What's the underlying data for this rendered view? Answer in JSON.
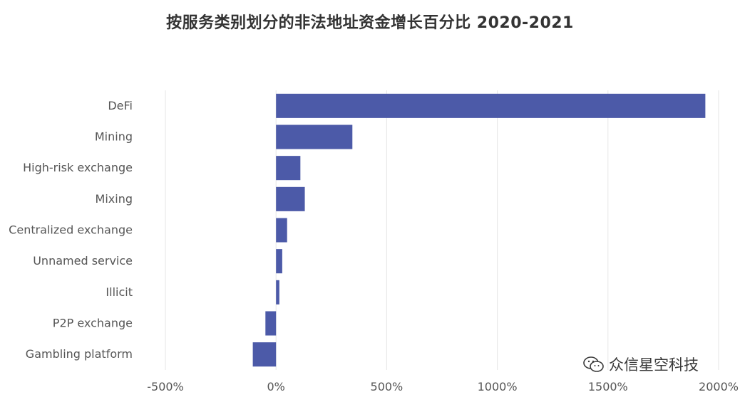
{
  "chart_data": {
    "type": "bar",
    "orientation": "horizontal",
    "title": "按服务类别划分的非法地址资金增长百分比 2020-2021",
    "xlabel": "",
    "ylabel": "",
    "categories": [
      "DeFi",
      "Mining",
      "High-risk exchange",
      "Mixing",
      "Centralized exchange",
      "Unnamed service",
      "Illicit",
      "P2P exchange",
      "Gambling platform"
    ],
    "values": [
      1940,
      345,
      110,
      130,
      50,
      28,
      15,
      -48,
      -105
    ],
    "xlim": [
      -500,
      2000
    ],
    "xticks": [
      -500,
      0,
      500,
      1000,
      1500,
      2000
    ],
    "xtick_labels": [
      "-500%",
      "0%",
      "500%",
      "1000%",
      "1500%",
      "2000%"
    ],
    "grid": true,
    "bar_color": "#4c5aa8",
    "legend": "none"
  },
  "watermark": {
    "text": "众信星空科技",
    "icon": "wechat-icon"
  }
}
